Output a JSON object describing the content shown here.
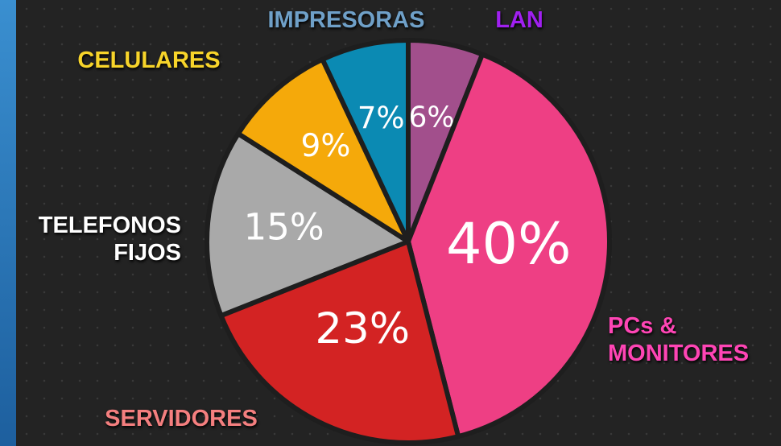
{
  "chart_data": {
    "type": "pie",
    "categories": [
      "LAN",
      "PCs & MONITORES",
      "SERVIDORES",
      "TELEFONOS FIJOS",
      "CELULARES",
      "IMPRESORAS"
    ],
    "values": [
      6,
      40,
      23,
      15,
      9,
      7
    ],
    "value_labels": [
      "6%",
      "40%",
      "23%",
      "15%",
      "9%",
      "7%"
    ],
    "colors": [
      "#a24f8c",
      "#ee3f84",
      "#d32323",
      "#a9a9a9",
      "#f5a90a",
      "#0b8ab3"
    ],
    "label_colors": [
      "#a020f0",
      "#ff45b5",
      "#f47f7f",
      "#ffffff",
      "#f7d42a",
      "#6fa0c8"
    ]
  }
}
